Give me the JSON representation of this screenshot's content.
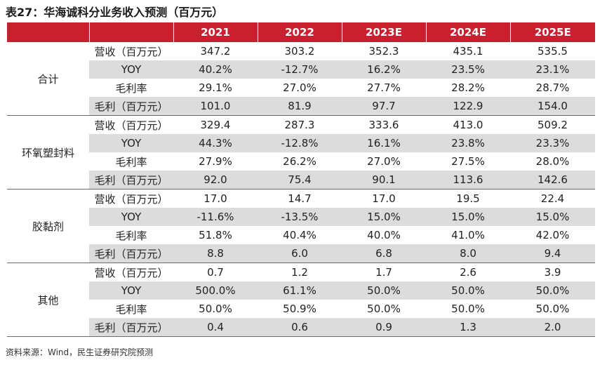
{
  "title": "表27：华海诚科分业务收入预测（百万元）",
  "columns": [
    "",
    "",
    "2021",
    "2022",
    "2023E",
    "2024E",
    "2025E"
  ],
  "segments": [
    {
      "name": "合计",
      "rows": [
        {
          "metric": "营收（百万元）",
          "values": [
            "347.2",
            "303.2",
            "352.3",
            "435.1",
            "535.5"
          ]
        },
        {
          "metric": "YOY",
          "values": [
            "40.2%",
            "-12.7%",
            "16.2%",
            "23.5%",
            "23.1%"
          ]
        },
        {
          "metric": "毛利率",
          "values": [
            "29.1%",
            "27.0%",
            "27.7%",
            "28.2%",
            "28.7%"
          ]
        },
        {
          "metric": "毛利（百万元）",
          "values": [
            "101.0",
            "81.9",
            "97.7",
            "122.9",
            "154.0"
          ]
        }
      ]
    },
    {
      "name": "环氧塑封料",
      "rows": [
        {
          "metric": "营收（百万元）",
          "values": [
            "329.4",
            "287.3",
            "333.6",
            "413.0",
            "509.2"
          ]
        },
        {
          "metric": "YOY",
          "values": [
            "44.3%",
            "-12.8%",
            "16.1%",
            "23.8%",
            "23.3%"
          ]
        },
        {
          "metric": "毛利率",
          "values": [
            "27.9%",
            "26.2%",
            "27.0%",
            "27.5%",
            "28.0%"
          ]
        },
        {
          "metric": "毛利（百万元）",
          "values": [
            "92.0",
            "75.4",
            "90.1",
            "113.6",
            "142.6"
          ]
        }
      ]
    },
    {
      "name": "胶黏剂",
      "rows": [
        {
          "metric": "营收（百万元）",
          "values": [
            "17.0",
            "14.7",
            "17.0",
            "19.5",
            "22.4"
          ]
        },
        {
          "metric": "YOY",
          "values": [
            "-11.6%",
            "-13.5%",
            "15.0%",
            "15.0%",
            "15.0%"
          ]
        },
        {
          "metric": "毛利率",
          "values": [
            "51.8%",
            "40.4%",
            "40.0%",
            "41.0%",
            "42.0%"
          ]
        },
        {
          "metric": "毛利（百万元）",
          "values": [
            "8.8",
            "6.0",
            "6.8",
            "8.0",
            "9.4"
          ]
        }
      ]
    },
    {
      "name": "其他",
      "rows": [
        {
          "metric": "营收（百万元）",
          "values": [
            "0.7",
            "1.2",
            "1.7",
            "2.6",
            "3.9"
          ]
        },
        {
          "metric": "YOY",
          "values": [
            "500.0%",
            "61.1%",
            "50.0%",
            "50.0%",
            "50.0%"
          ]
        },
        {
          "metric": "毛利率",
          "values": [
            "50.0%",
            "50.9%",
            "50.0%",
            "50.0%",
            "50.0%"
          ]
        },
        {
          "metric": "毛利（百万元）",
          "values": [
            "0.4",
            "0.6",
            "0.9",
            "1.3",
            "2.0"
          ]
        }
      ]
    }
  ],
  "source": "资料来源：Wind，民生证券研究院预测",
  "colors": {
    "header_bg": "#c8202e",
    "shade_bg": "#dcdcdc",
    "rule": "#6b6b6b"
  }
}
